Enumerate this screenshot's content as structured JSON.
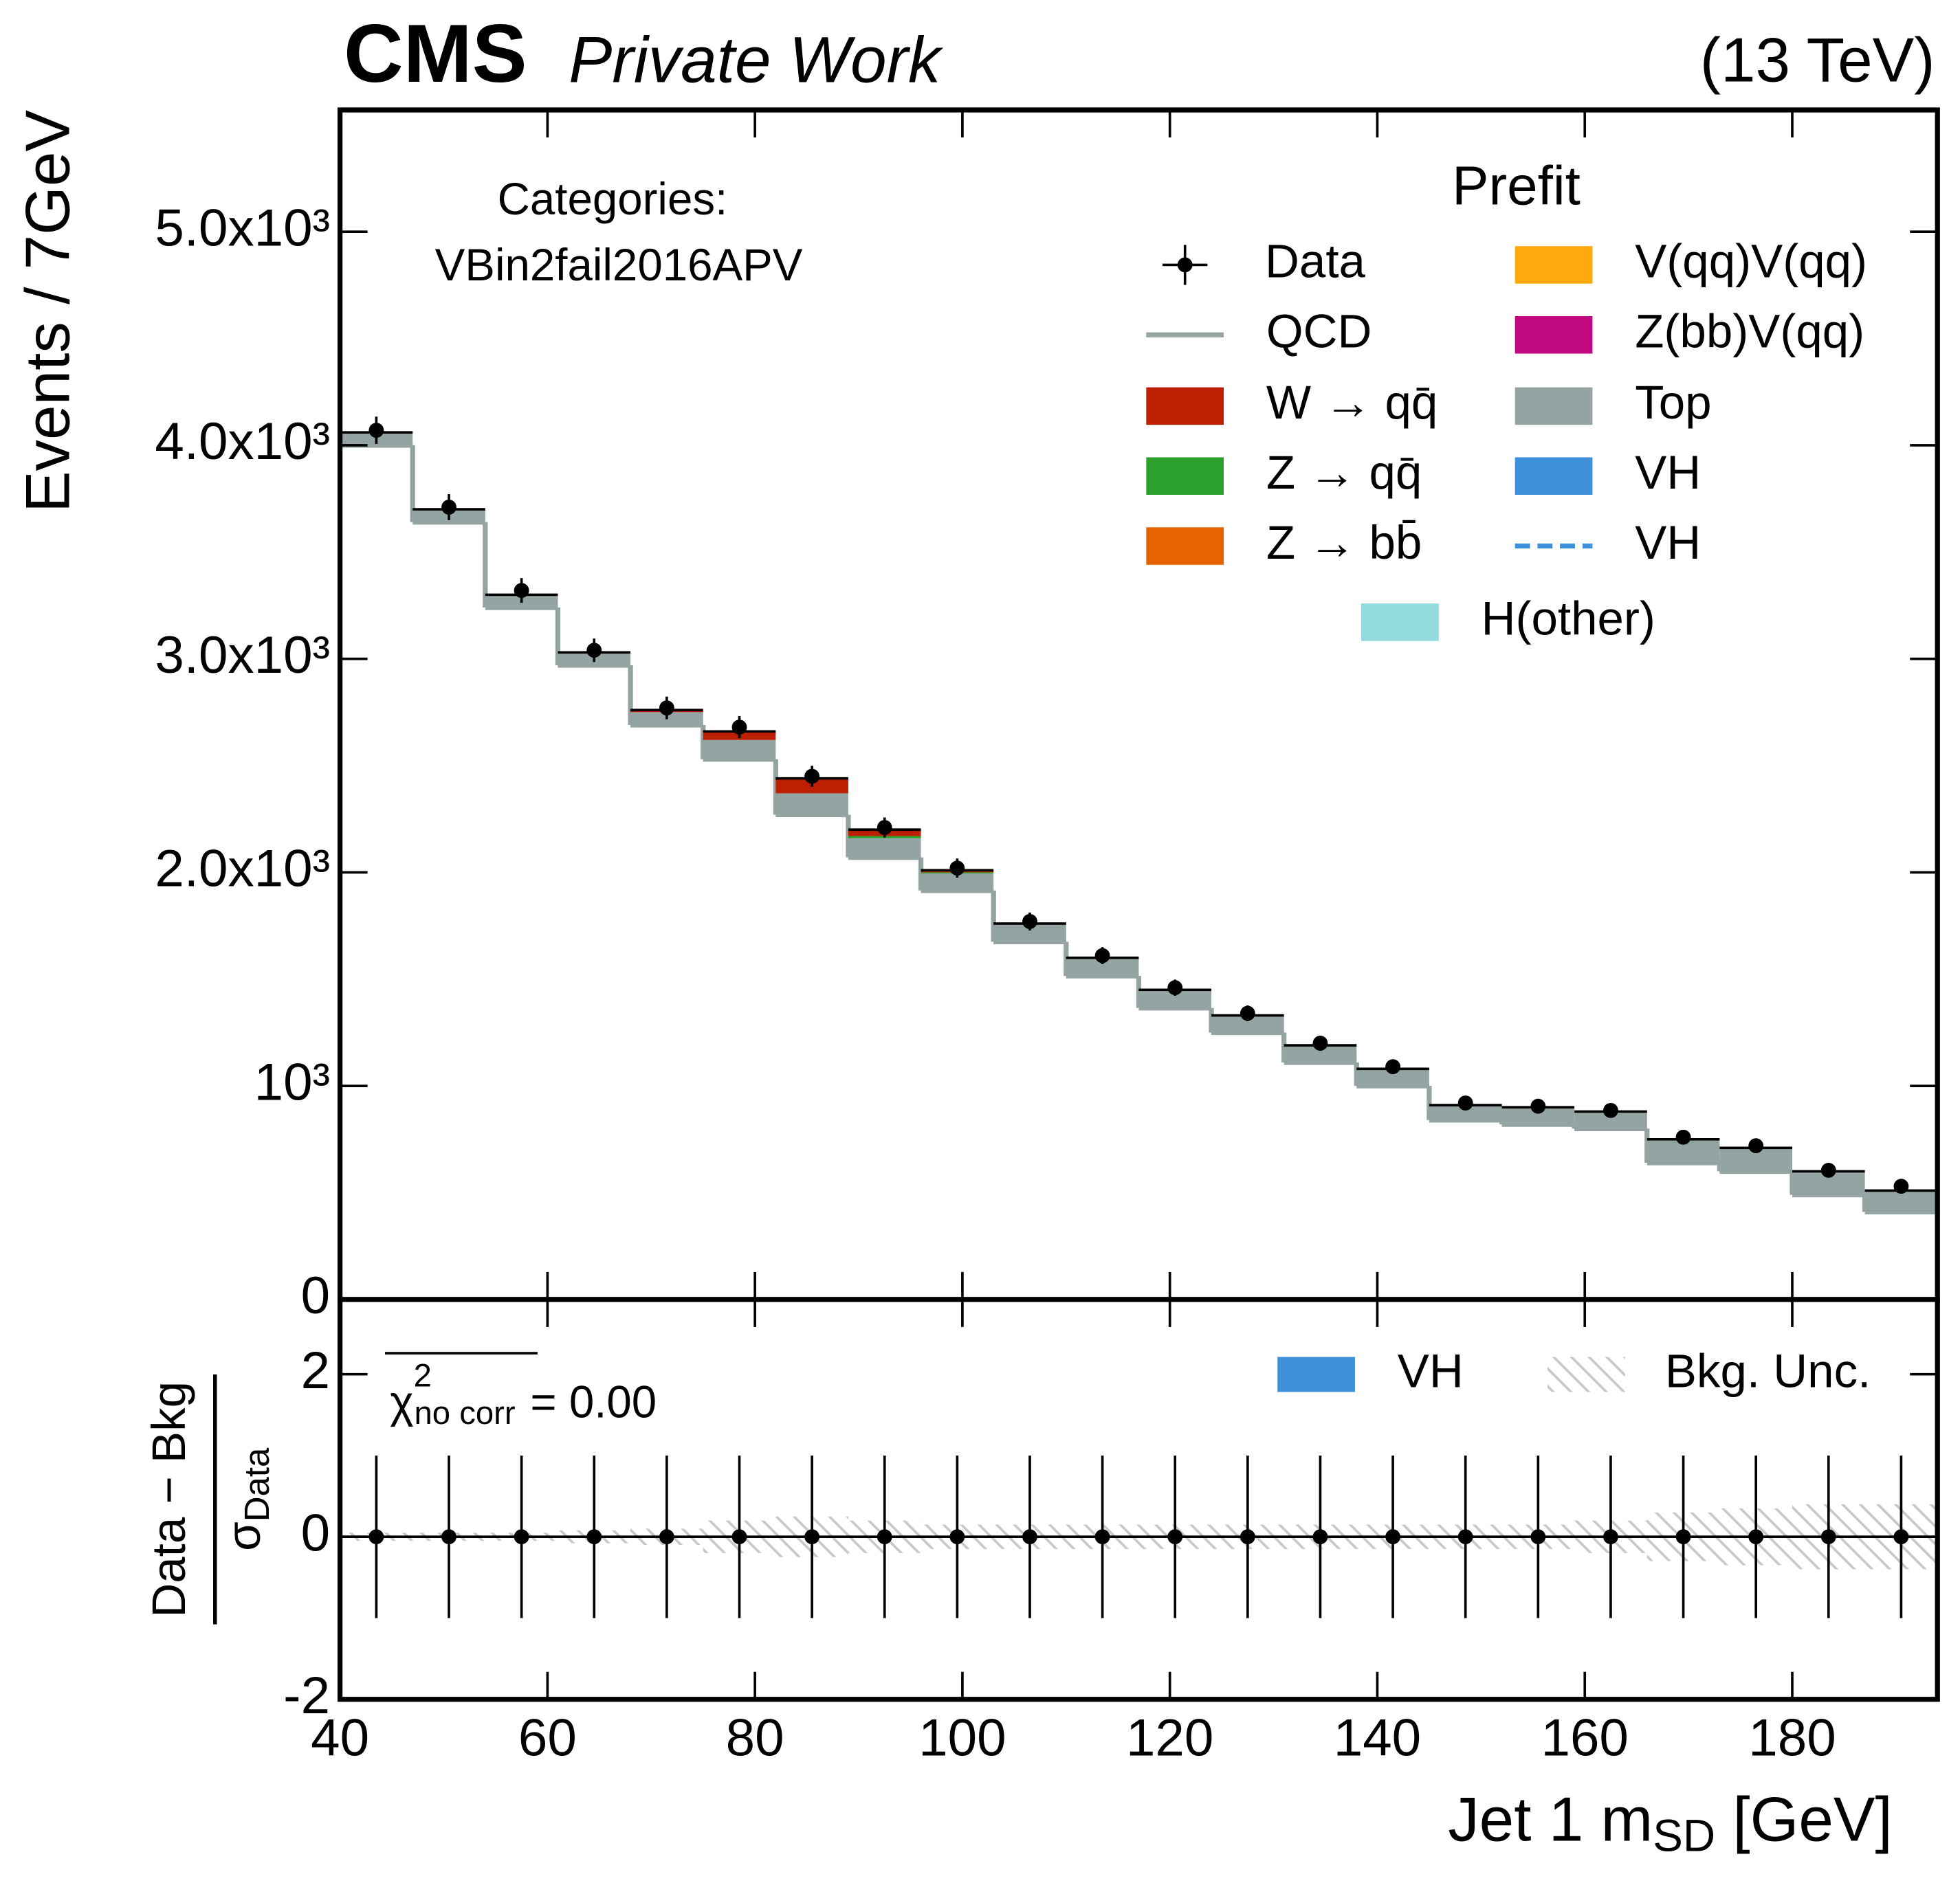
{
  "header": {
    "experiment": "CMS",
    "label": "Private Work",
    "energy": "(13 TeV)"
  },
  "chart_data": [
    {
      "type": "histogram",
      "ylabel": "Events / 7GeV",
      "annotations": [
        "Categories:",
        "VBin2fail2016APV"
      ],
      "legend_title": "Prefit",
      "bins": [
        40,
        47,
        54,
        61,
        68,
        75,
        82,
        89,
        96,
        103,
        110,
        117,
        124,
        131,
        138,
        145,
        152,
        159,
        166,
        173,
        180,
        187,
        194
      ],
      "xlim": [
        40,
        194
      ],
      "ylim": [
        0,
        5570
      ],
      "yticks": [
        {
          "value": 0,
          "label": "0"
        },
        {
          "value": 1000,
          "label": "10³"
        },
        {
          "value": 2000,
          "label": "2.0x10³"
        },
        {
          "value": 3000,
          "label": "3.0x10³"
        },
        {
          "value": 4000,
          "label": "4.0x10³"
        },
        {
          "value": 5000,
          "label": "5.0x10³"
        }
      ],
      "data": {
        "name": "Data",
        "color": "#000000",
        "values": [
          4070,
          3710,
          3320,
          3040,
          2770,
          2680,
          2450,
          2210,
          2020,
          1770,
          1610,
          1460,
          1340,
          1200,
          1090,
          920,
          905,
          885,
          760,
          720,
          605,
          530
        ],
        "errors": [
          64,
          61,
          58,
          55,
          53,
          52,
          49,
          47,
          45,
          42,
          40,
          38,
          37,
          35,
          33,
          30,
          30,
          30,
          28,
          27,
          25,
          23
        ]
      },
      "series": [
        {
          "name": "QCD",
          "style": "line",
          "color": "#94a4a2",
          "values": [
            4000,
            3640,
            3240,
            2970,
            2690,
            2530,
            2270,
            2070,
            1915,
            1675,
            1515,
            1365,
            1250,
            1110,
            1000,
            840,
            820,
            800,
            640,
            600,
            490,
            410
          ]
        },
        {
          "name": "W → qq̄",
          "style": "fill",
          "color": "#bd1f01",
          "values": [
            0,
            0,
            0,
            0,
            10,
            40,
            70,
            30,
            10,
            5,
            5,
            5,
            0,
            0,
            0,
            0,
            0,
            0,
            0,
            0,
            0,
            0
          ]
        },
        {
          "name": "Z → qq̄",
          "style": "fill",
          "color": "#2ca02c",
          "values": [
            0,
            0,
            0,
            0,
            0,
            0,
            0,
            10,
            5,
            0,
            0,
            0,
            0,
            0,
            0,
            0,
            0,
            0,
            0,
            0,
            0,
            0
          ]
        },
        {
          "name": "Z → bb̄",
          "style": "fill",
          "color": "#e76300",
          "values": [
            0,
            0,
            0,
            0,
            0,
            0,
            0,
            0,
            0,
            0,
            0,
            0,
            0,
            0,
            0,
            0,
            0,
            0,
            0,
            0,
            0,
            0
          ]
        },
        {
          "name": "V(qq)V(qq)",
          "style": "fill",
          "color": "#ffa90e",
          "values": [
            0,
            0,
            0,
            0,
            0,
            0,
            0,
            0,
            0,
            0,
            0,
            0,
            0,
            0,
            0,
            0,
            0,
            0,
            0,
            0,
            0,
            0
          ]
        },
        {
          "name": "Z(bb)V(qq)",
          "style": "fill",
          "color": "#c0087f",
          "values": [
            0,
            0,
            0,
            0,
            0,
            0,
            0,
            0,
            0,
            0,
            0,
            0,
            0,
            0,
            0,
            0,
            0,
            0,
            0,
            0,
            0,
            0
          ]
        },
        {
          "name": "Top",
          "style": "fill",
          "color": "#94a4a2",
          "values": [
            60,
            60,
            60,
            60,
            60,
            90,
            100,
            90,
            80,
            80,
            80,
            80,
            80,
            80,
            80,
            70,
            80,
            80,
            110,
            110,
            110,
            100
          ]
        },
        {
          "name": "VH",
          "style": "fill",
          "color": "#3f90da",
          "values": [
            0,
            0,
            0,
            0,
            0,
            0,
            0,
            0,
            0,
            0,
            0,
            0,
            0,
            0,
            0,
            0,
            0,
            0,
            0,
            0,
            0,
            0
          ]
        },
        {
          "name": "VH",
          "style": "dashed",
          "color": "#3f90da",
          "values": [
            0,
            0,
            0,
            0,
            0,
            0,
            0,
            0,
            0,
            0,
            0,
            0,
            0,
            0,
            0,
            0,
            0,
            0,
            0,
            0,
            0,
            0
          ]
        },
        {
          "name": "H(other)",
          "style": "fill",
          "color": "#92dadd",
          "values": [
            0,
            0,
            0,
            0,
            0,
            0,
            0,
            0,
            0,
            0,
            0,
            0,
            0,
            0,
            0,
            0,
            0,
            0,
            0,
            0,
            0,
            0
          ]
        }
      ]
    },
    {
      "type": "ratio",
      "xlabel": {
        "main": "Jet 1 m",
        "sub": "SD",
        "unit": " [GeV]"
      },
      "ylabel": {
        "numerator": "Data − Bkg",
        "denominator": "σ",
        "denominator_sub": "Data"
      },
      "chi2": {
        "symbol": "χ",
        "sup": "2",
        "sub": "no corr",
        "value": "= 0.00"
      },
      "xlim": [
        40,
        194
      ],
      "xticks": [
        40,
        60,
        80,
        100,
        120,
        140,
        160,
        180
      ],
      "ylim": [
        -2,
        2.92
      ],
      "yticks": [
        -2,
        0,
        2
      ],
      "values": [
        0,
        0,
        0,
        0,
        0,
        0,
        0,
        0,
        0,
        0,
        0,
        0,
        0,
        0,
        0,
        0,
        0,
        0,
        0,
        0,
        0,
        0
      ],
      "errors": [
        1,
        1,
        1,
        1,
        1,
        1,
        1,
        1,
        1,
        1,
        1,
        1,
        1,
        1,
        1,
        1,
        1,
        1,
        1,
        1,
        1,
        1
      ],
      "bkg_unc": [
        0.05,
        0.05,
        0.05,
        0.08,
        0.1,
        0.2,
        0.25,
        0.2,
        0.15,
        0.15,
        0.15,
        0.15,
        0.15,
        0.15,
        0.15,
        0.15,
        0.15,
        0.2,
        0.3,
        0.35,
        0.4,
        0.4
      ],
      "legend": [
        {
          "name": "VH",
          "color": "#3f90da"
        },
        {
          "name": "Bkg. Unc."
        }
      ]
    }
  ]
}
